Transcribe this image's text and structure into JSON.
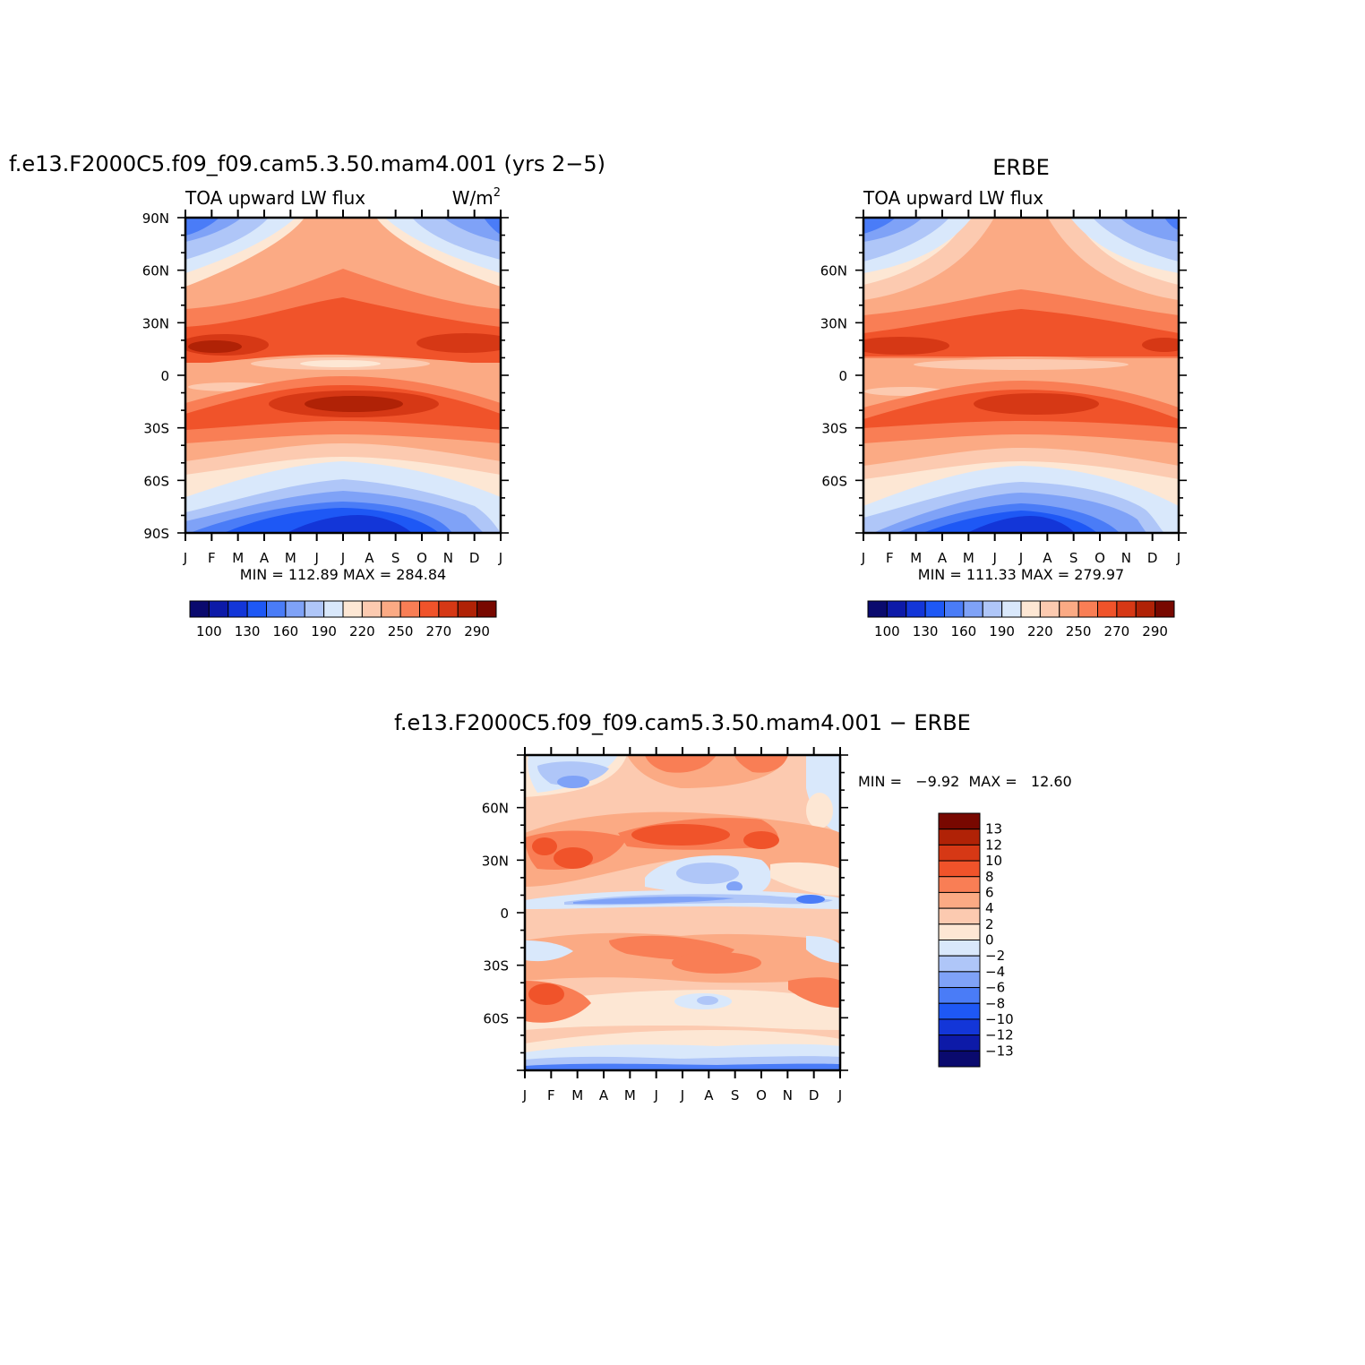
{
  "chart_data": [
    {
      "type": "heatmap",
      "id": "model",
      "title": "f.e13.F2000C5.f09_f09.cam5.3.50.mam4.001 (yrs 2−5)",
      "left_label": "TOA upward LW flux",
      "right_label": "W/m",
      "right_label_sup": "2",
      "x_ticks": [
        "J",
        "F",
        "M",
        "A",
        "M",
        "J",
        "J",
        "A",
        "S",
        "O",
        "N",
        "D",
        "J"
      ],
      "y_ticks": [
        {
          "lat": 90,
          "label": "90N"
        },
        {
          "lat": 60,
          "label": "60N"
        },
        {
          "lat": 30,
          "label": "30N"
        },
        {
          "lat": 0,
          "label": "0"
        },
        {
          "lat": -30,
          "label": "30S"
        },
        {
          "lat": -60,
          "label": "60S"
        },
        {
          "lat": -90,
          "label": "90S"
        }
      ],
      "ylim": [
        -90,
        90
      ],
      "stats": "MIN = 112.89 MAX = 284.84",
      "min": 112.89,
      "max": 284.84,
      "colorbar": {
        "orientation": "horizontal",
        "labels": [
          "100",
          "130",
          "160",
          "190",
          "220",
          "250",
          "270",
          "290"
        ]
      }
    },
    {
      "type": "heatmap",
      "id": "obs",
      "title": "ERBE",
      "left_label": "TOA upward LW flux",
      "x_ticks": [
        "J",
        "F",
        "M",
        "A",
        "M",
        "J",
        "J",
        "A",
        "S",
        "O",
        "N",
        "D",
        "J"
      ],
      "y_ticks": [
        {
          "lat": 60,
          "label": "60N"
        },
        {
          "lat": 30,
          "label": "30N"
        },
        {
          "lat": 0,
          "label": "0"
        },
        {
          "lat": -30,
          "label": "30S"
        },
        {
          "lat": -60,
          "label": "60S"
        }
      ],
      "ylim": [
        -90,
        90
      ],
      "stats": "MIN = 111.33 MAX = 279.97",
      "min": 111.33,
      "max": 279.97,
      "colorbar": {
        "orientation": "horizontal",
        "labels": [
          "100",
          "130",
          "160",
          "190",
          "220",
          "250",
          "270",
          "290"
        ]
      }
    },
    {
      "type": "heatmap",
      "id": "diff",
      "title": "f.e13.F2000C5.f09_f09.cam5.3.50.mam4.001 − ERBE",
      "x_ticks": [
        "J",
        "F",
        "M",
        "A",
        "M",
        "J",
        "J",
        "A",
        "S",
        "O",
        "N",
        "D",
        "J"
      ],
      "y_ticks": [
        {
          "lat": 60,
          "label": "60N"
        },
        {
          "lat": 30,
          "label": "30N"
        },
        {
          "lat": 0,
          "label": "0"
        },
        {
          "lat": -30,
          "label": "30S"
        },
        {
          "lat": -60,
          "label": "60S"
        }
      ],
      "ylim": [
        -90,
        90
      ],
      "stats": "MIN =   −9.92  MAX =   12.60",
      "min": -9.92,
      "max": 12.6,
      "colorbar": {
        "orientation": "vertical",
        "labels": [
          "13",
          "12",
          "10",
          "8",
          "6",
          "4",
          "2",
          "0",
          "−2",
          "−4",
          "−6",
          "−8",
          "−10",
          "−12",
          "−13"
        ]
      }
    }
  ],
  "colors": {
    "flux_palette": [
      "#0a0a6e",
      "#0d1aa8",
      "#1336d8",
      "#1e58f5",
      "#4a7cf7",
      "#7fa2f7",
      "#afc6f8",
      "#d9e8fb",
      "#fde7d4",
      "#fccab0",
      "#fbaa84",
      "#f97e55",
      "#f0532a",
      "#d63815",
      "#b02206",
      "#780800"
    ],
    "diff_palette": [
      "#780800",
      "#b02206",
      "#d63815",
      "#f0532a",
      "#f97e55",
      "#fbaa84",
      "#fccab0",
      "#fde7d4",
      "#d9e8fb",
      "#afc6f8",
      "#7fa2f7",
      "#4a7cf7",
      "#1e58f5",
      "#1336d8",
      "#0d1aa8",
      "#0a0a6e"
    ]
  }
}
